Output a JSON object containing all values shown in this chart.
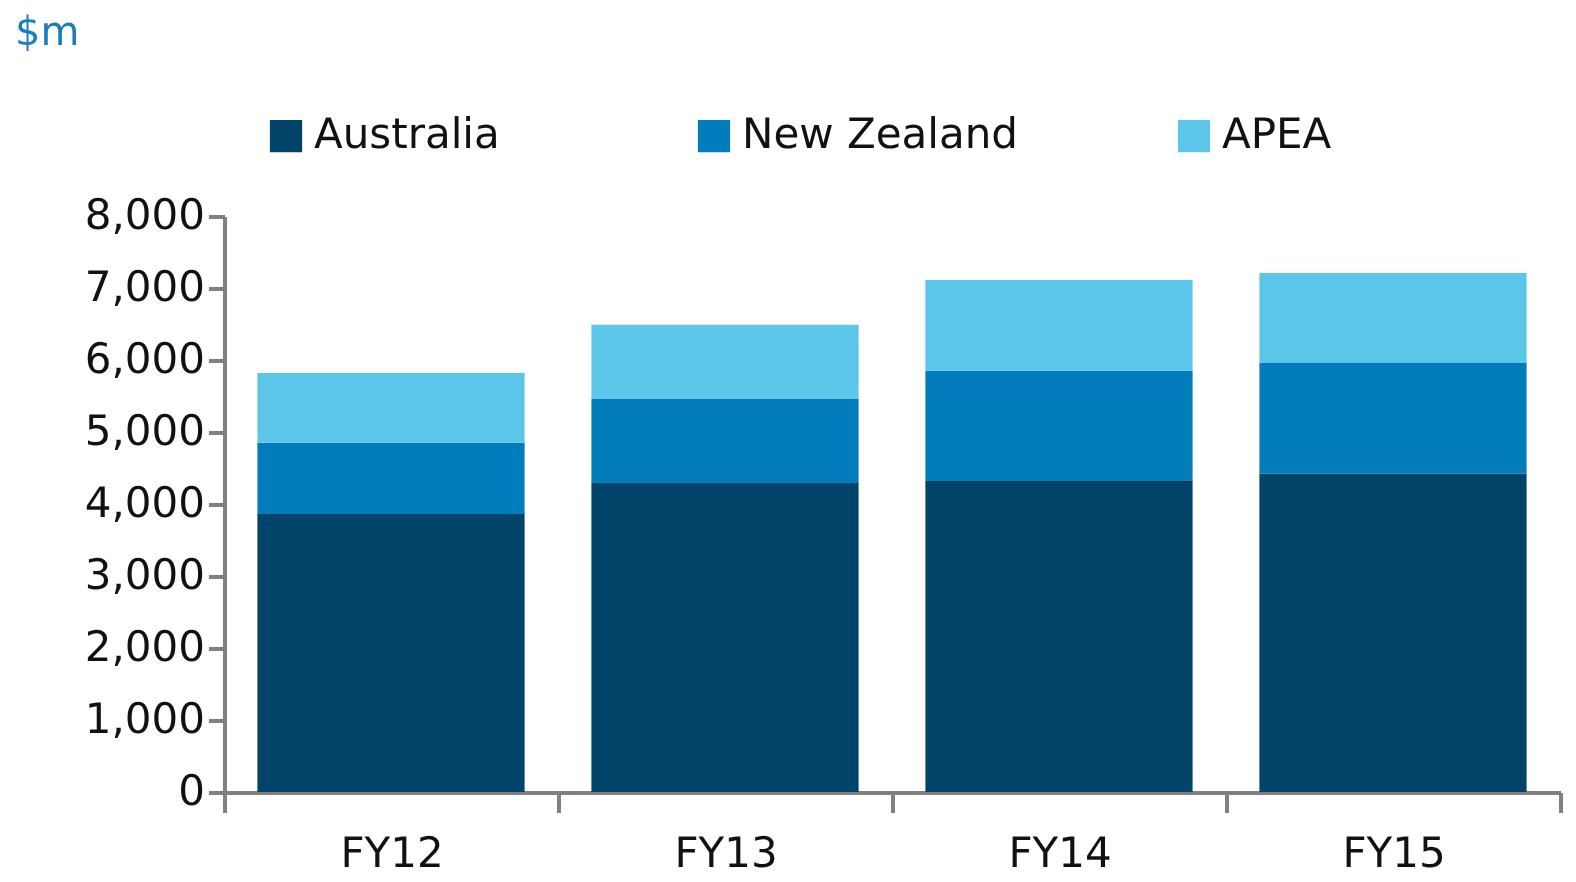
{
  "chart_data": {
    "type": "bar",
    "stacked": true,
    "ylabel": "$m",
    "categories": [
      "FY12",
      "FY13",
      "FY14",
      "FY15"
    ],
    "series": [
      {
        "name": "Australia",
        "color": "#02436a",
        "values": [
          3860,
          4290,
          4330,
          4420
        ]
      },
      {
        "name": "New Zealand",
        "color": "#027dbb",
        "values": [
          990,
          1170,
          1520,
          1540
        ]
      },
      {
        "name": "APEA",
        "color": "#5bc6e8",
        "values": [
          970,
          1030,
          1260,
          1250
        ]
      }
    ],
    "ylim": [
      0,
      8000
    ],
    "yticks": [
      0,
      {
        "value": 1000,
        "label": "1,000"
      },
      {
        "value": 2000,
        "label": "2,000"
      },
      {
        "value": 3000,
        "label": "3,000"
      },
      {
        "value": 4000,
        "label": "4,000"
      },
      {
        "value": 5000,
        "label": "5,000"
      },
      {
        "value": 6000,
        "label": "6,000"
      },
      {
        "value": 7000,
        "label": "7,000"
      },
      {
        "value": 8000,
        "label": "8,000"
      }
    ],
    "grid": false,
    "legend": "top"
  }
}
